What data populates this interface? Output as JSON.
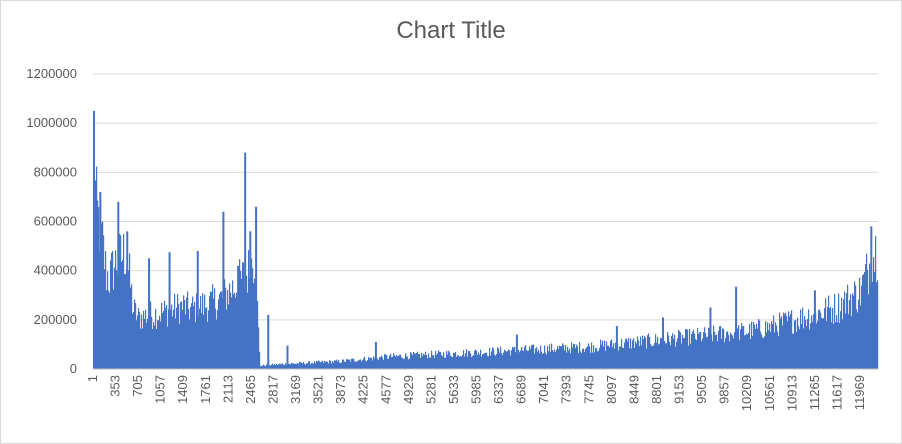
{
  "chart_data": {
    "type": "bar",
    "title": "Chart Title",
    "xlabel": "",
    "ylabel": "",
    "ylim": [
      0,
      1200000
    ],
    "y_ticks": [
      0,
      200000,
      400000,
      600000,
      800000,
      1000000,
      1200000
    ],
    "y_tick_labels": [
      "0",
      "200000",
      "400000",
      "600000",
      "800000",
      "1000000",
      "1200000"
    ],
    "x_range": [
      1,
      12250
    ],
    "x_tick_labels": [
      "1",
      "353",
      "705",
      "1057",
      "1409",
      "1761",
      "2113",
      "2465",
      "2817",
      "3169",
      "3521",
      "3873",
      "4225",
      "4577",
      "4929",
      "5281",
      "5633",
      "5985",
      "6337",
      "6689",
      "7041",
      "7393",
      "7745",
      "8097",
      "8449",
      "8801",
      "9153",
      "9505",
      "9857",
      "10209",
      "10561",
      "10913",
      "11265",
      "11617",
      "11969"
    ],
    "grid": true,
    "legend": "none",
    "bar_color": "#4472c4",
    "series": [
      {
        "x": [
          1,
          40,
          90,
          150,
          200,
          250,
          300,
          353,
          420,
          500,
          560,
          620,
          705,
          800,
          900,
          1000,
          1057,
          1150,
          1250,
          1350,
          1409,
          1500,
          1600,
          1700,
          1761,
          1850,
          1950,
          2050,
          2113,
          2200,
          2300,
          2400,
          2465,
          2520,
          2600,
          2817,
          3169,
          3521,
          3873,
          4225,
          4577,
          4929,
          5281,
          5633,
          5985,
          6337,
          6689,
          7041,
          7393,
          7745,
          8097,
          8449,
          8801,
          9153,
          9505,
          9857,
          10209,
          10561,
          10913,
          11265,
          11617,
          11700,
          11969,
          12050,
          12150,
          12250
        ],
        "values": [
          1050000,
          730000,
          650000,
          550000,
          430000,
          410000,
          450000,
          480000,
          500000,
          530000,
          420000,
          270000,
          230000,
          240000,
          245000,
          250000,
          255000,
          260000,
          270000,
          280000,
          285000,
          270000,
          275000,
          285000,
          290000,
          300000,
          310000,
          330000,
          350000,
          370000,
          400000,
          430000,
          470000,
          520000,
          15000,
          20000,
          25000,
          30000,
          35000,
          45000,
          55000,
          60000,
          65000,
          70000,
          75000,
          80000,
          85000,
          90000,
          95000,
          100000,
          110000,
          120000,
          130000,
          140000,
          150000,
          160000,
          170000,
          190000,
          220000,
          250000,
          280000,
          300000,
          350000,
          420000,
          500000,
          560000
        ]
      }
    ],
    "spikes": [
      {
        "x": 1,
        "y": 1050000
      },
      {
        "x": 100,
        "y": 720000
      },
      {
        "x": 380,
        "y": 680000
      },
      {
        "x": 520,
        "y": 560000
      },
      {
        "x": 860,
        "y": 450000
      },
      {
        "x": 1180,
        "y": 475000
      },
      {
        "x": 1620,
        "y": 480000
      },
      {
        "x": 2020,
        "y": 640000
      },
      {
        "x": 2250,
        "y": 420000
      },
      {
        "x": 2360,
        "y": 880000
      },
      {
        "x": 2440,
        "y": 560000
      },
      {
        "x": 2530,
        "y": 660000
      },
      {
        "x": 2720,
        "y": 220000
      },
      {
        "x": 3020,
        "y": 95000
      },
      {
        "x": 4400,
        "y": 110000
      },
      {
        "x": 6600,
        "y": 140000
      },
      {
        "x": 8160,
        "y": 175000
      },
      {
        "x": 8880,
        "y": 210000
      },
      {
        "x": 9620,
        "y": 250000
      },
      {
        "x": 10020,
        "y": 335000
      },
      {
        "x": 11250,
        "y": 320000
      },
      {
        "x": 12130,
        "y": 580000
      }
    ]
  }
}
